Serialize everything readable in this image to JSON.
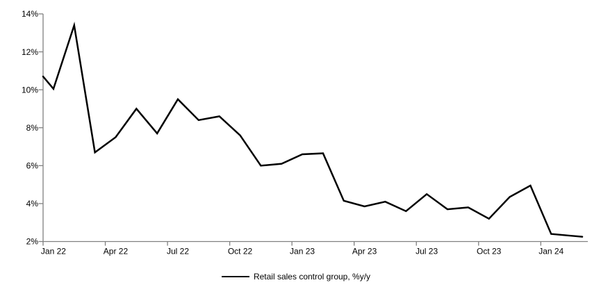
{
  "chart_data": {
    "type": "line",
    "title": "",
    "series_name": "Retail sales control group, %y/y",
    "categories": [
      "Jan 22",
      "Feb 22",
      "Mar 22",
      "Apr 22",
      "May 22",
      "Jun 22",
      "Jul 22",
      "Aug 22",
      "Sep 22",
      "Oct 22",
      "Nov 22",
      "Dec 22",
      "Jan 23",
      "Feb 23",
      "Mar 23",
      "Apr 23",
      "May 23",
      "Jun 23",
      "Jul 23",
      "Aug 23",
      "Sep 23",
      "Oct 23",
      "Nov 23",
      "Dec 23",
      "Jan 24",
      "Feb 24"
    ],
    "values": [
      10.05,
      13.4,
      6.7,
      7.5,
      9.0,
      7.7,
      9.5,
      8.4,
      8.6,
      7.6,
      6.0,
      6.1,
      6.6,
      6.65,
      4.15,
      3.85,
      4.1,
      3.6,
      4.5,
      3.7,
      3.8,
      3.2,
      4.35,
      4.95,
      2.4,
      2.3
    ],
    "edge_start_value": 10.7,
    "edge_end_value": 2.25,
    "x_tick_labels": [
      "Jan 22",
      "Apr 22",
      "Jul 22",
      "Oct 22",
      "Jan 23",
      "Apr 23",
      "Jul 23",
      "Oct 23",
      "Jan 24"
    ],
    "x_label_every": 3,
    "ylim": [
      2,
      14
    ],
    "y_tick_step": 2,
    "y_tick_suffix": "%",
    "y_tick_labels": [
      "2%",
      "4%",
      "6%",
      "8%",
      "10%",
      "12%",
      "14%"
    ],
    "grid": "off",
    "legend_position": "bottom-center",
    "line_color": "#000000",
    "axis_color": "#808080",
    "text_color": "#000000",
    "background": "#FFFFFF"
  }
}
